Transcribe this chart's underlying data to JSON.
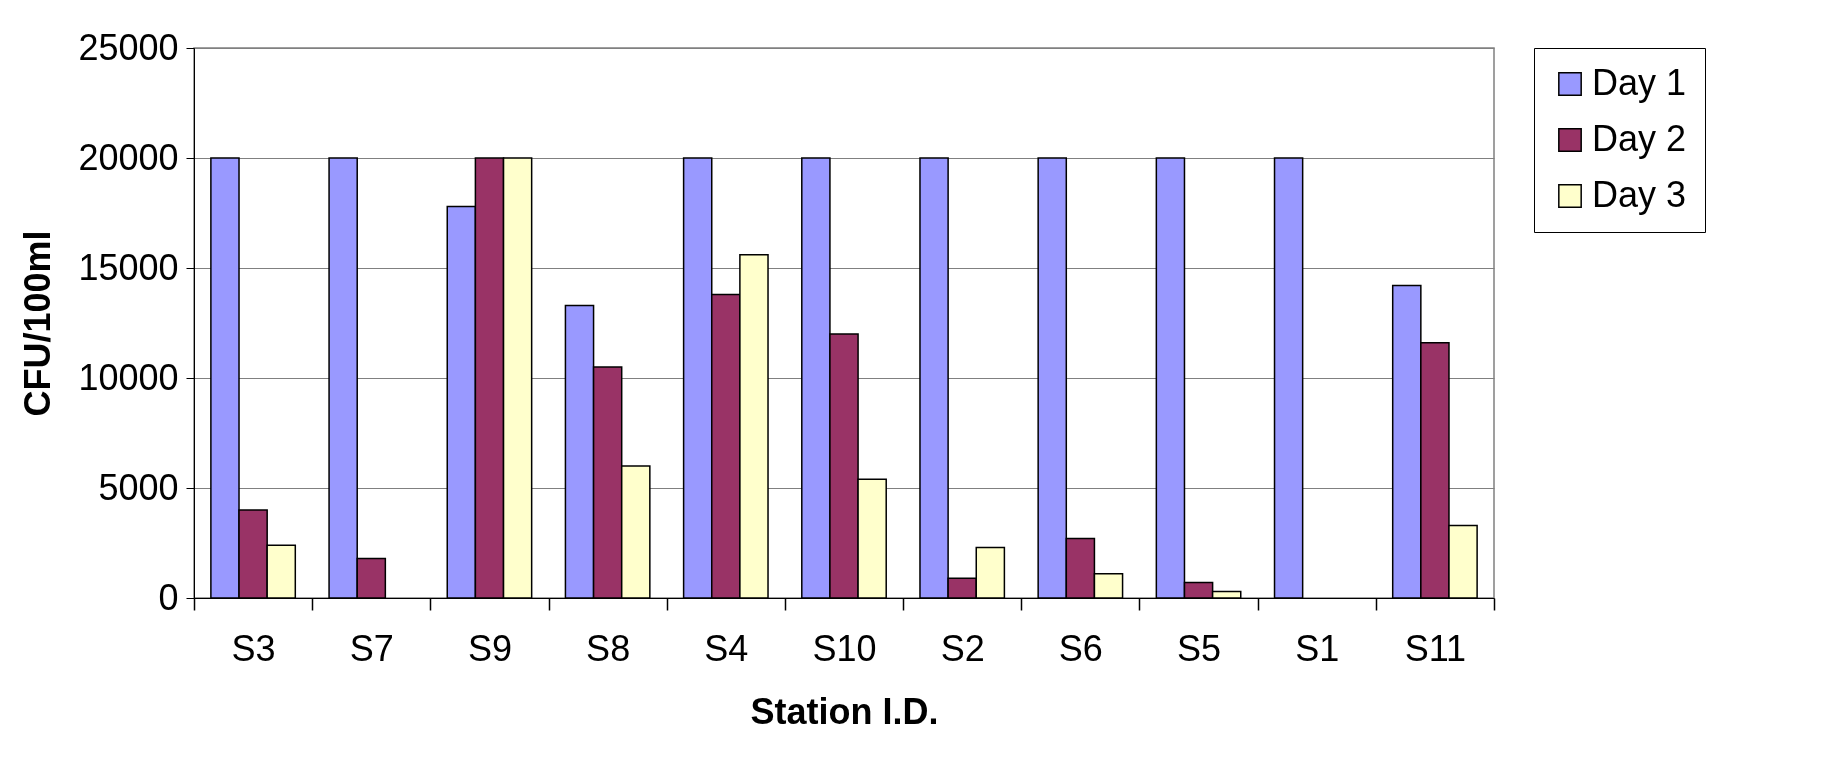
{
  "chart_data": {
    "type": "bar",
    "xlabel": "Station I.D.",
    "ylabel": "CFU/100ml",
    "categories": [
      "S3",
      "S7",
      "S9",
      "S8",
      "S4",
      "S10",
      "S2",
      "S6",
      "S5",
      "S1",
      "S11"
    ],
    "series": [
      {
        "name": "Day 1",
        "color": "#9999ff",
        "values": [
          20000,
          20000,
          17800,
          13300,
          20000,
          20000,
          20000,
          20000,
          20000,
          20000,
          14200
        ]
      },
      {
        "name": "Day 2",
        "color": "#993366",
        "values": [
          4000,
          1800,
          20000,
          10500,
          13800,
          12000,
          900,
          2700,
          700,
          null,
          11600
        ]
      },
      {
        "name": "Day 3",
        "color": "#ffffcc",
        "values": [
          2400,
          null,
          20000,
          6000,
          15600,
          5400,
          2300,
          1100,
          300,
          null,
          3300
        ]
      }
    ],
    "ylim": [
      0,
      25000
    ],
    "yticks": [
      0,
      5000,
      10000,
      15000,
      20000,
      25000
    ],
    "grid": "y",
    "legend": "right"
  }
}
